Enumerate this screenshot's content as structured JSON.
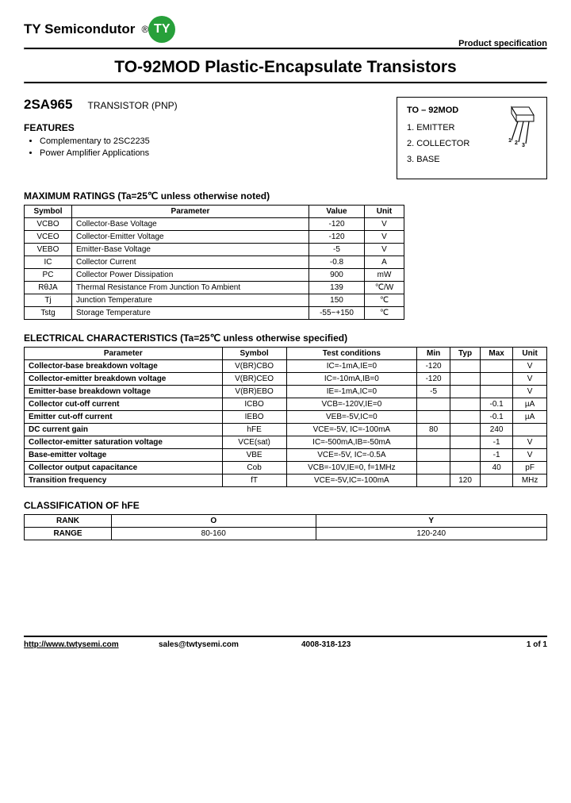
{
  "header": {
    "company": "TY Semicondutor",
    "reg": "®",
    "logo_text": "TY",
    "logo_bg": "#27a03a",
    "logo_fg": "#ffffff",
    "product_spec": "Product specification"
  },
  "title": "TO-92MOD Plastic-Encapsulate Transistors",
  "part": {
    "number": "2SA965",
    "type": "TRANSISTOR (PNP)"
  },
  "features": {
    "heading": "FEATURES",
    "items": [
      "Complementary to 2SC2235",
      "Power Amplifier Applications"
    ]
  },
  "package": {
    "title": "TO – 92MOD",
    "pins": [
      "1. EMITTER",
      "2. COLLECTOR",
      "3. BASE"
    ]
  },
  "max_ratings": {
    "heading": "MAXIMUM RATINGS (Ta=25℃ unless otherwise noted)",
    "cols": [
      "Symbol",
      "Parameter",
      "Value",
      "Unit"
    ],
    "rows": [
      [
        "VCBO",
        "Collector-Base Voltage",
        "-120",
        "V"
      ],
      [
        "VCEO",
        "Collector-Emitter Voltage",
        "-120",
        "V"
      ],
      [
        "VEBO",
        "Emitter-Base Voltage",
        "-5",
        "V"
      ],
      [
        "IC",
        "Collector Current",
        "-0.8",
        "A"
      ],
      [
        "PC",
        "Collector Power Dissipation",
        "900",
        "mW"
      ],
      [
        "RθJA",
        "Thermal Resistance From Junction To Ambient",
        "139",
        "℃/W"
      ],
      [
        "Tj",
        "Junction Temperature",
        "150",
        "℃"
      ],
      [
        "Tstg",
        "Storage Temperature",
        "-55~+150",
        "℃"
      ]
    ]
  },
  "elec": {
    "heading": "ELECTRICAL CHARACTERISTICS (Ta=25℃ unless otherwise specified)",
    "cols": [
      "Parameter",
      "Symbol",
      "Test   conditions",
      "Min",
      "Typ",
      "Max",
      "Unit"
    ],
    "rows": [
      [
        "Collector-base breakdown voltage",
        "V(BR)CBO",
        "IC=-1mA,IE=0",
        "-120",
        "",
        "",
        "V"
      ],
      [
        "Collector-emitter breakdown voltage",
        "V(BR)CEO",
        "IC=-10mA,IB=0",
        "-120",
        "",
        "",
        "V"
      ],
      [
        "Emitter-base breakdown voltage",
        "V(BR)EBO",
        "IE=-1mA,IC=0",
        "-5",
        "",
        "",
        "V"
      ],
      [
        "Collector cut-off current",
        "ICBO",
        "VCB=-120V,IE=0",
        "",
        "",
        "-0.1",
        "µA"
      ],
      [
        "Emitter cut-off current",
        "IEBO",
        "VEB=-5V,IC=0",
        "",
        "",
        "-0.1",
        "µA"
      ],
      [
        "DC current gain",
        "hFE",
        "VCE=-5V, IC=-100mA",
        "80",
        "",
        "240",
        ""
      ],
      [
        "Collector-emitter saturation voltage",
        "VCE(sat)",
        "IC=-500mA,IB=-50mA",
        "",
        "",
        "-1",
        "V"
      ],
      [
        "Base-emitter voltage",
        "VBE",
        "VCE=-5V, IC=-0.5A",
        "",
        "",
        "-1",
        "V"
      ],
      [
        "Collector output capacitance",
        "Cob",
        "VCB=-10V,IE=0, f=1MHz",
        "",
        "",
        "40",
        "pF"
      ],
      [
        "Transition frequency",
        "fT",
        "VCE=-5V,IC=-100mA",
        "",
        "120",
        "",
        "MHz"
      ]
    ]
  },
  "class": {
    "heading": "CLASSIFICATION OF hFE",
    "header": [
      "RANK",
      "O",
      "Y"
    ],
    "row": [
      "RANGE",
      "80-160",
      "120-240"
    ]
  },
  "footer": {
    "url": "http://www.twtysemi.com",
    "email": "sales@twtysemi.com",
    "phone": "4008-318-123",
    "page": "1 of 1"
  }
}
